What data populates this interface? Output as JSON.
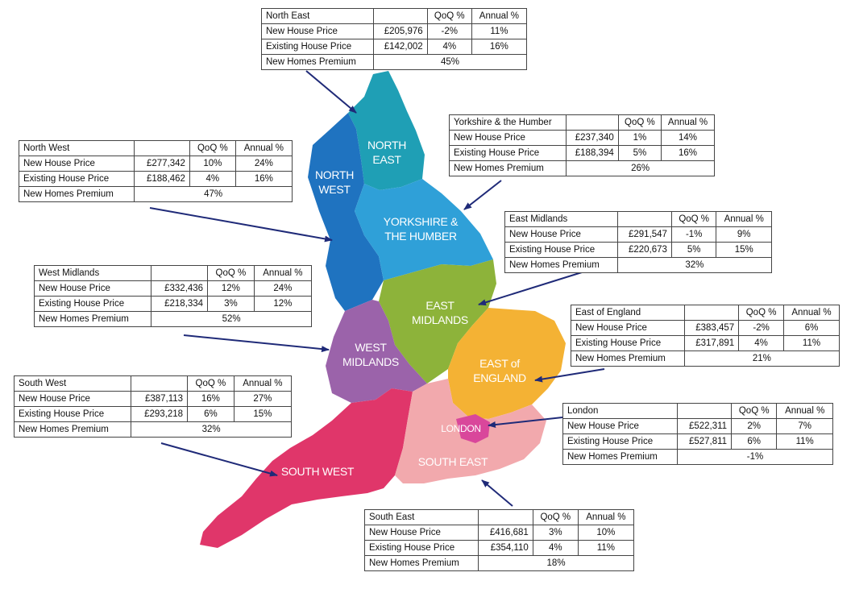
{
  "headers": {
    "qoq": "QoQ %",
    "annual": "Annual %"
  },
  "row_labels": {
    "new": "New House Price",
    "existing": "Existing House Price",
    "premium": "New Homes Premium"
  },
  "map_labels": {
    "ne": [
      "NORTH",
      "EAST"
    ],
    "nw": [
      "NORTH",
      "WEST"
    ],
    "yh": [
      "YORKSHIRE &",
      "THE HUMBER"
    ],
    "em": [
      "EAST",
      "MIDLANDS"
    ],
    "wm": [
      "WEST",
      "MIDLANDS"
    ],
    "ee": [
      "EAST of",
      "ENGLAND"
    ],
    "ld": [
      "LONDON"
    ],
    "sw": [
      "SOUTH WEST"
    ],
    "se": [
      "SOUTH EAST"
    ]
  },
  "colors": {
    "ne": "#1f9fb5",
    "nw": "#1f73c0",
    "yh": "#2fa0d8",
    "em": "#8db33a",
    "wm": "#9b63aa",
    "ee": "#f4b234",
    "ld": "#d9479b",
    "sw": "#e0366a",
    "se": "#f2a9ad",
    "arrow": "#1f2a78"
  },
  "regions": [
    {
      "name": "North East",
      "new_price": "£205,976",
      "new_qoq": "-2%",
      "new_annual": "11%",
      "exist_price": "£142,002",
      "exist_qoq": "4%",
      "exist_annual": "16%",
      "premium": "45%"
    },
    {
      "name": "Yorkshire & the Humber",
      "new_price": "£237,340",
      "new_qoq": "1%",
      "new_annual": "14%",
      "exist_price": "£188,394",
      "exist_qoq": "5%",
      "exist_annual": "16%",
      "premium": "26%"
    },
    {
      "name": "North West",
      "new_price": "£277,342",
      "new_qoq": "10%",
      "new_annual": "24%",
      "exist_price": "£188,462",
      "exist_qoq": "4%",
      "exist_annual": "16%",
      "premium": "47%"
    },
    {
      "name": "East Midlands",
      "new_price": "£291,547",
      "new_qoq": "-1%",
      "new_annual": "9%",
      "exist_price": "£220,673",
      "exist_qoq": "5%",
      "exist_annual": "15%",
      "premium": "32%"
    },
    {
      "name": "West Midlands",
      "new_price": "£332,436",
      "new_qoq": "12%",
      "new_annual": "24%",
      "exist_price": "£218,334",
      "exist_qoq": "3%",
      "exist_annual": "12%",
      "premium": "52%"
    },
    {
      "name": "East of England",
      "new_price": "£383,457",
      "new_qoq": "-2%",
      "new_annual": "6%",
      "exist_price": "£317,891",
      "exist_qoq": "4%",
      "exist_annual": "11%",
      "premium": "21%"
    },
    {
      "name": "South West",
      "new_price": "£387,113",
      "new_qoq": "16%",
      "new_annual": "27%",
      "exist_price": "£293,218",
      "exist_qoq": "6%",
      "exist_annual": "15%",
      "premium": "32%"
    },
    {
      "name": "London",
      "new_price": "£522,311",
      "new_qoq": "2%",
      "new_annual": "7%",
      "exist_price": "£527,811",
      "exist_qoq": "6%",
      "exist_annual": "11%",
      "premium": "-1%"
    },
    {
      "name": "South East",
      "new_price": "£416,681",
      "new_qoq": "3%",
      "new_annual": "10%",
      "exist_price": "£354,110",
      "exist_qoq": "4%",
      "exist_annual": "11%",
      "premium": "18%"
    }
  ]
}
